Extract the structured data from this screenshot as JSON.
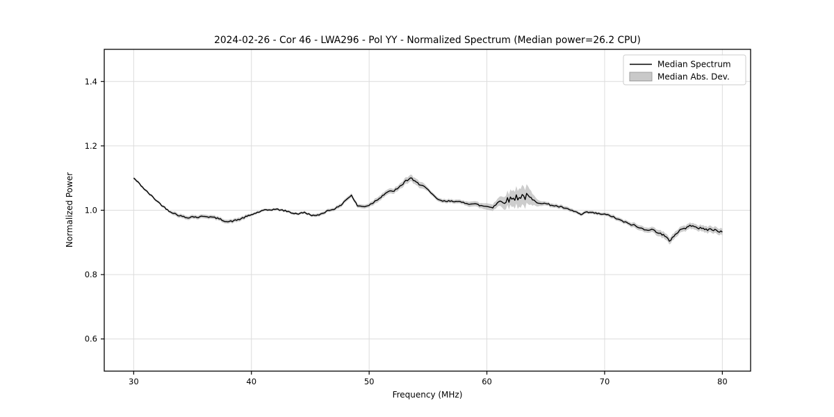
{
  "page": {
    "background": "#ffffff"
  },
  "chart_data": {
    "type": "line",
    "title": "2024-02-26 - Cor 46 - LWA296 - Pol YY - Normalized Spectrum (Median power=26.2 CPU)",
    "xlabel": "Frequency (MHz)",
    "ylabel": "Normalized Power",
    "xlim": [
      27.5,
      82.4
    ],
    "ylim": [
      0.5,
      1.5
    ],
    "grid": true,
    "xticks": {
      "values": [
        30,
        40,
        50,
        60,
        70,
        80
      ],
      "labels": [
        "30",
        "40",
        "50",
        "60",
        "70",
        "80"
      ]
    },
    "yticks": {
      "values": [
        0.6,
        0.8,
        1.0,
        1.2,
        1.4
      ],
      "labels": [
        "0.6",
        "0.8",
        "1.0",
        "1.2",
        "1.4"
      ]
    },
    "legend": {
      "position": "upper right",
      "entries": [
        {
          "label": "Median Spectrum",
          "type": "line",
          "color": "#000000"
        },
        {
          "label": "Median Abs. Dev.",
          "type": "patch",
          "fill": "#c9c9c9",
          "edge": "#9e9e9e"
        }
      ]
    },
    "series": [
      {
        "name": "Median Spectrum",
        "x_start": 30.0,
        "x_step": 0.5,
        "values": [
          1.1,
          1.082,
          1.062,
          1.045,
          1.028,
          1.012,
          0.998,
          0.989,
          0.982,
          0.977,
          0.98,
          0.978,
          0.982,
          0.979,
          0.976,
          0.97,
          0.964,
          0.967,
          0.972,
          0.979,
          0.986,
          0.993,
          0.999,
          1.001,
          1.003,
          1.001,
          0.997,
          0.991,
          0.989,
          0.993,
          0.986,
          0.982,
          0.99,
          0.999,
          1.004,
          1.012,
          1.032,
          1.046,
          1.014,
          1.011,
          1.016,
          1.028,
          1.042,
          1.056,
          1.059,
          1.068,
          1.088,
          1.1,
          1.085,
          1.08,
          1.062,
          1.044,
          1.03,
          1.027,
          1.03,
          1.026,
          1.024,
          1.021,
          1.019,
          1.014,
          1.012,
          1.01,
          1.026,
          1.029,
          1.034,
          1.041,
          1.044,
          1.041,
          1.028,
          1.024,
          1.02,
          1.016,
          1.012,
          1.008,
          1.001,
          0.996,
          0.986,
          0.994,
          0.992,
          0.989,
          0.987,
          0.983,
          0.974,
          0.966,
          0.959,
          0.953,
          0.944,
          0.941,
          0.939,
          0.933,
          0.922,
          0.905,
          0.925,
          0.941,
          0.946,
          0.955,
          0.944,
          0.941,
          0.94,
          0.938,
          0.932
        ]
      },
      {
        "name": "Median Abs. Dev.",
        "role": "band_halfwidth",
        "x_start": 30.0,
        "x_step": 0.5,
        "values": [
          0.004,
          0.004,
          0.004,
          0.004,
          0.004,
          0.004,
          0.004,
          0.006,
          0.006,
          0.006,
          0.006,
          0.006,
          0.006,
          0.006,
          0.006,
          0.006,
          0.006,
          0.006,
          0.006,
          0.006,
          0.004,
          0.004,
          0.004,
          0.004,
          0.004,
          0.004,
          0.004,
          0.004,
          0.004,
          0.004,
          0.004,
          0.005,
          0.005,
          0.005,
          0.005,
          0.006,
          0.006,
          0.006,
          0.006,
          0.006,
          0.006,
          0.008,
          0.008,
          0.008,
          0.008,
          0.008,
          0.01,
          0.01,
          0.01,
          0.01,
          0.006,
          0.006,
          0.006,
          0.006,
          0.006,
          0.006,
          0.006,
          0.008,
          0.008,
          0.008,
          0.01,
          0.01,
          0.013,
          0.02,
          0.024,
          0.027,
          0.03,
          0.028,
          0.015,
          0.008,
          0.006,
          0.006,
          0.006,
          0.006,
          0.006,
          0.005,
          0.005,
          0.005,
          0.005,
          0.005,
          0.005,
          0.006,
          0.006,
          0.006,
          0.006,
          0.008,
          0.008,
          0.008,
          0.008,
          0.01,
          0.01,
          0.01,
          0.01,
          0.009,
          0.009,
          0.009,
          0.009,
          0.01,
          0.01,
          0.01,
          0.01
        ]
      }
    ],
    "style": {
      "line_color": "#000000",
      "line_width": 1.4,
      "band_fill": "rgba(174,174,174,0.62)",
      "grid_color": "#dcdcdc",
      "spine_color": "#000000",
      "noise_seed": 42,
      "noise_base": 0.0022,
      "noise_mad_factor": 0.4,
      "subsamples_per_step": 4
    }
  }
}
